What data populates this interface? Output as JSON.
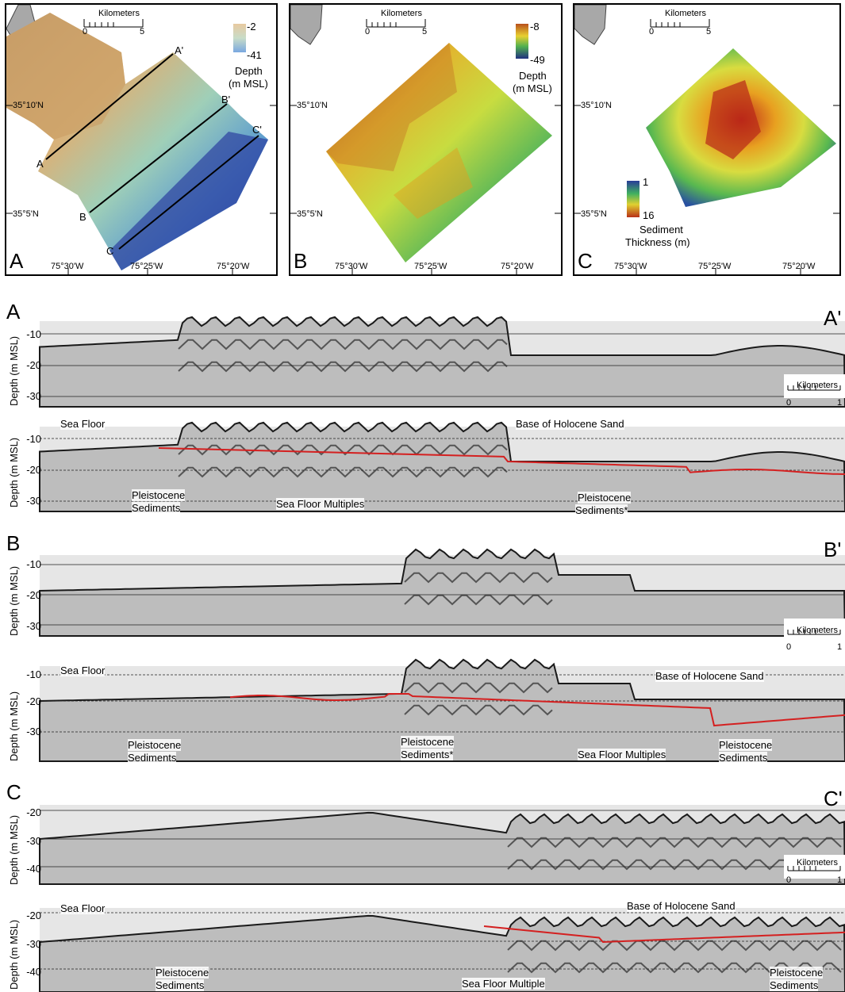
{
  "maps": [
    {
      "panel": "A",
      "scalebar": {
        "title": "Kilometers",
        "min": "0",
        "max": "5"
      },
      "colorbar": {
        "max": "-2",
        "min": "-41",
        "label_line1": "Depth",
        "label_line2": "(m MSL)"
      },
      "lat_labels": [
        "35°10'N",
        "35°5'N"
      ],
      "lon_labels": [
        "75°30'W",
        "75°25'W",
        "75°20'W"
      ],
      "lines": [
        {
          "start": "A",
          "end": "A'"
        },
        {
          "start": "B",
          "end": "B'"
        },
        {
          "start": "C",
          "end": "C'"
        }
      ]
    },
    {
      "panel": "B",
      "scalebar": {
        "title": "Kilometers",
        "min": "0",
        "max": "5"
      },
      "colorbar": {
        "max": "-8",
        "min": "-49",
        "label_line1": "Depth",
        "label_line2": "(m MSL)"
      },
      "lat_labels": [
        "35°10'N",
        "35°5'N"
      ],
      "lon_labels": [
        "75°30'W",
        "75°25'W",
        "75°20'W"
      ]
    },
    {
      "panel": "C",
      "scalebar": {
        "title": "Kilometers",
        "min": "0",
        "max": "5"
      },
      "colorbar": {
        "max": "1",
        "min": "16",
        "label_line1": "Sediment",
        "label_line2": "Thickness (m)"
      },
      "lat_labels": [
        "35°10'N",
        "35°5'N"
      ],
      "lon_labels": [
        "75°30'W",
        "75°25'W",
        "75°20'W"
      ]
    }
  ],
  "profiles": [
    {
      "start": "A",
      "end": "A'",
      "ylabel": "Depth (m MSL)",
      "ticks": [
        "-10",
        "-20",
        "-30"
      ],
      "scalebar": {
        "title": "Kilometers",
        "min": "0",
        "max": "1"
      },
      "annotations": {
        "sea_floor": "Sea Floor",
        "base_holocene": "Base of Holocene Sand",
        "pleist_left": [
          "Pleistocene",
          "Sediments"
        ],
        "multiples": "Sea Floor Multiples",
        "pleist_right": [
          "Pleistocene",
          "Sediments*"
        ]
      }
    },
    {
      "start": "B",
      "end": "B'",
      "ylabel": "Depth (m MSL)",
      "ticks": [
        "-10",
        "-20",
        "-30"
      ],
      "scalebar": {
        "title": "Kilometers",
        "min": "0",
        "max": "1"
      },
      "annotations": {
        "sea_floor": "Sea Floor",
        "base_holocene": "Base of Holocene Sand",
        "pleist_left": [
          "Pleistocene",
          "Sediments"
        ],
        "pleist_mid": [
          "Pleistocene",
          "Sediments*"
        ],
        "multiples": "Sea Floor Multiples",
        "pleist_right": [
          "Pleistocene",
          "Sediments"
        ]
      }
    },
    {
      "start": "C",
      "end": "C'",
      "ylabel": "Depth (m MSL)",
      "ticks": [
        "-20",
        "-30",
        "-40"
      ],
      "scalebar": {
        "title": "Kilometers",
        "min": "0",
        "max": "1"
      },
      "annotations": {
        "sea_floor": "Sea Floor",
        "base_holocene": "Base of Holocene Sand",
        "pleist_left": [
          "Pleistocene",
          "Sediments"
        ],
        "multiples": "Sea Floor Multiple",
        "pleist_right": [
          "Pleistocene",
          "Sediments"
        ]
      }
    }
  ],
  "colors": {
    "holocene_base": "#d42020",
    "seismic_dark": "#1a1a1a"
  }
}
